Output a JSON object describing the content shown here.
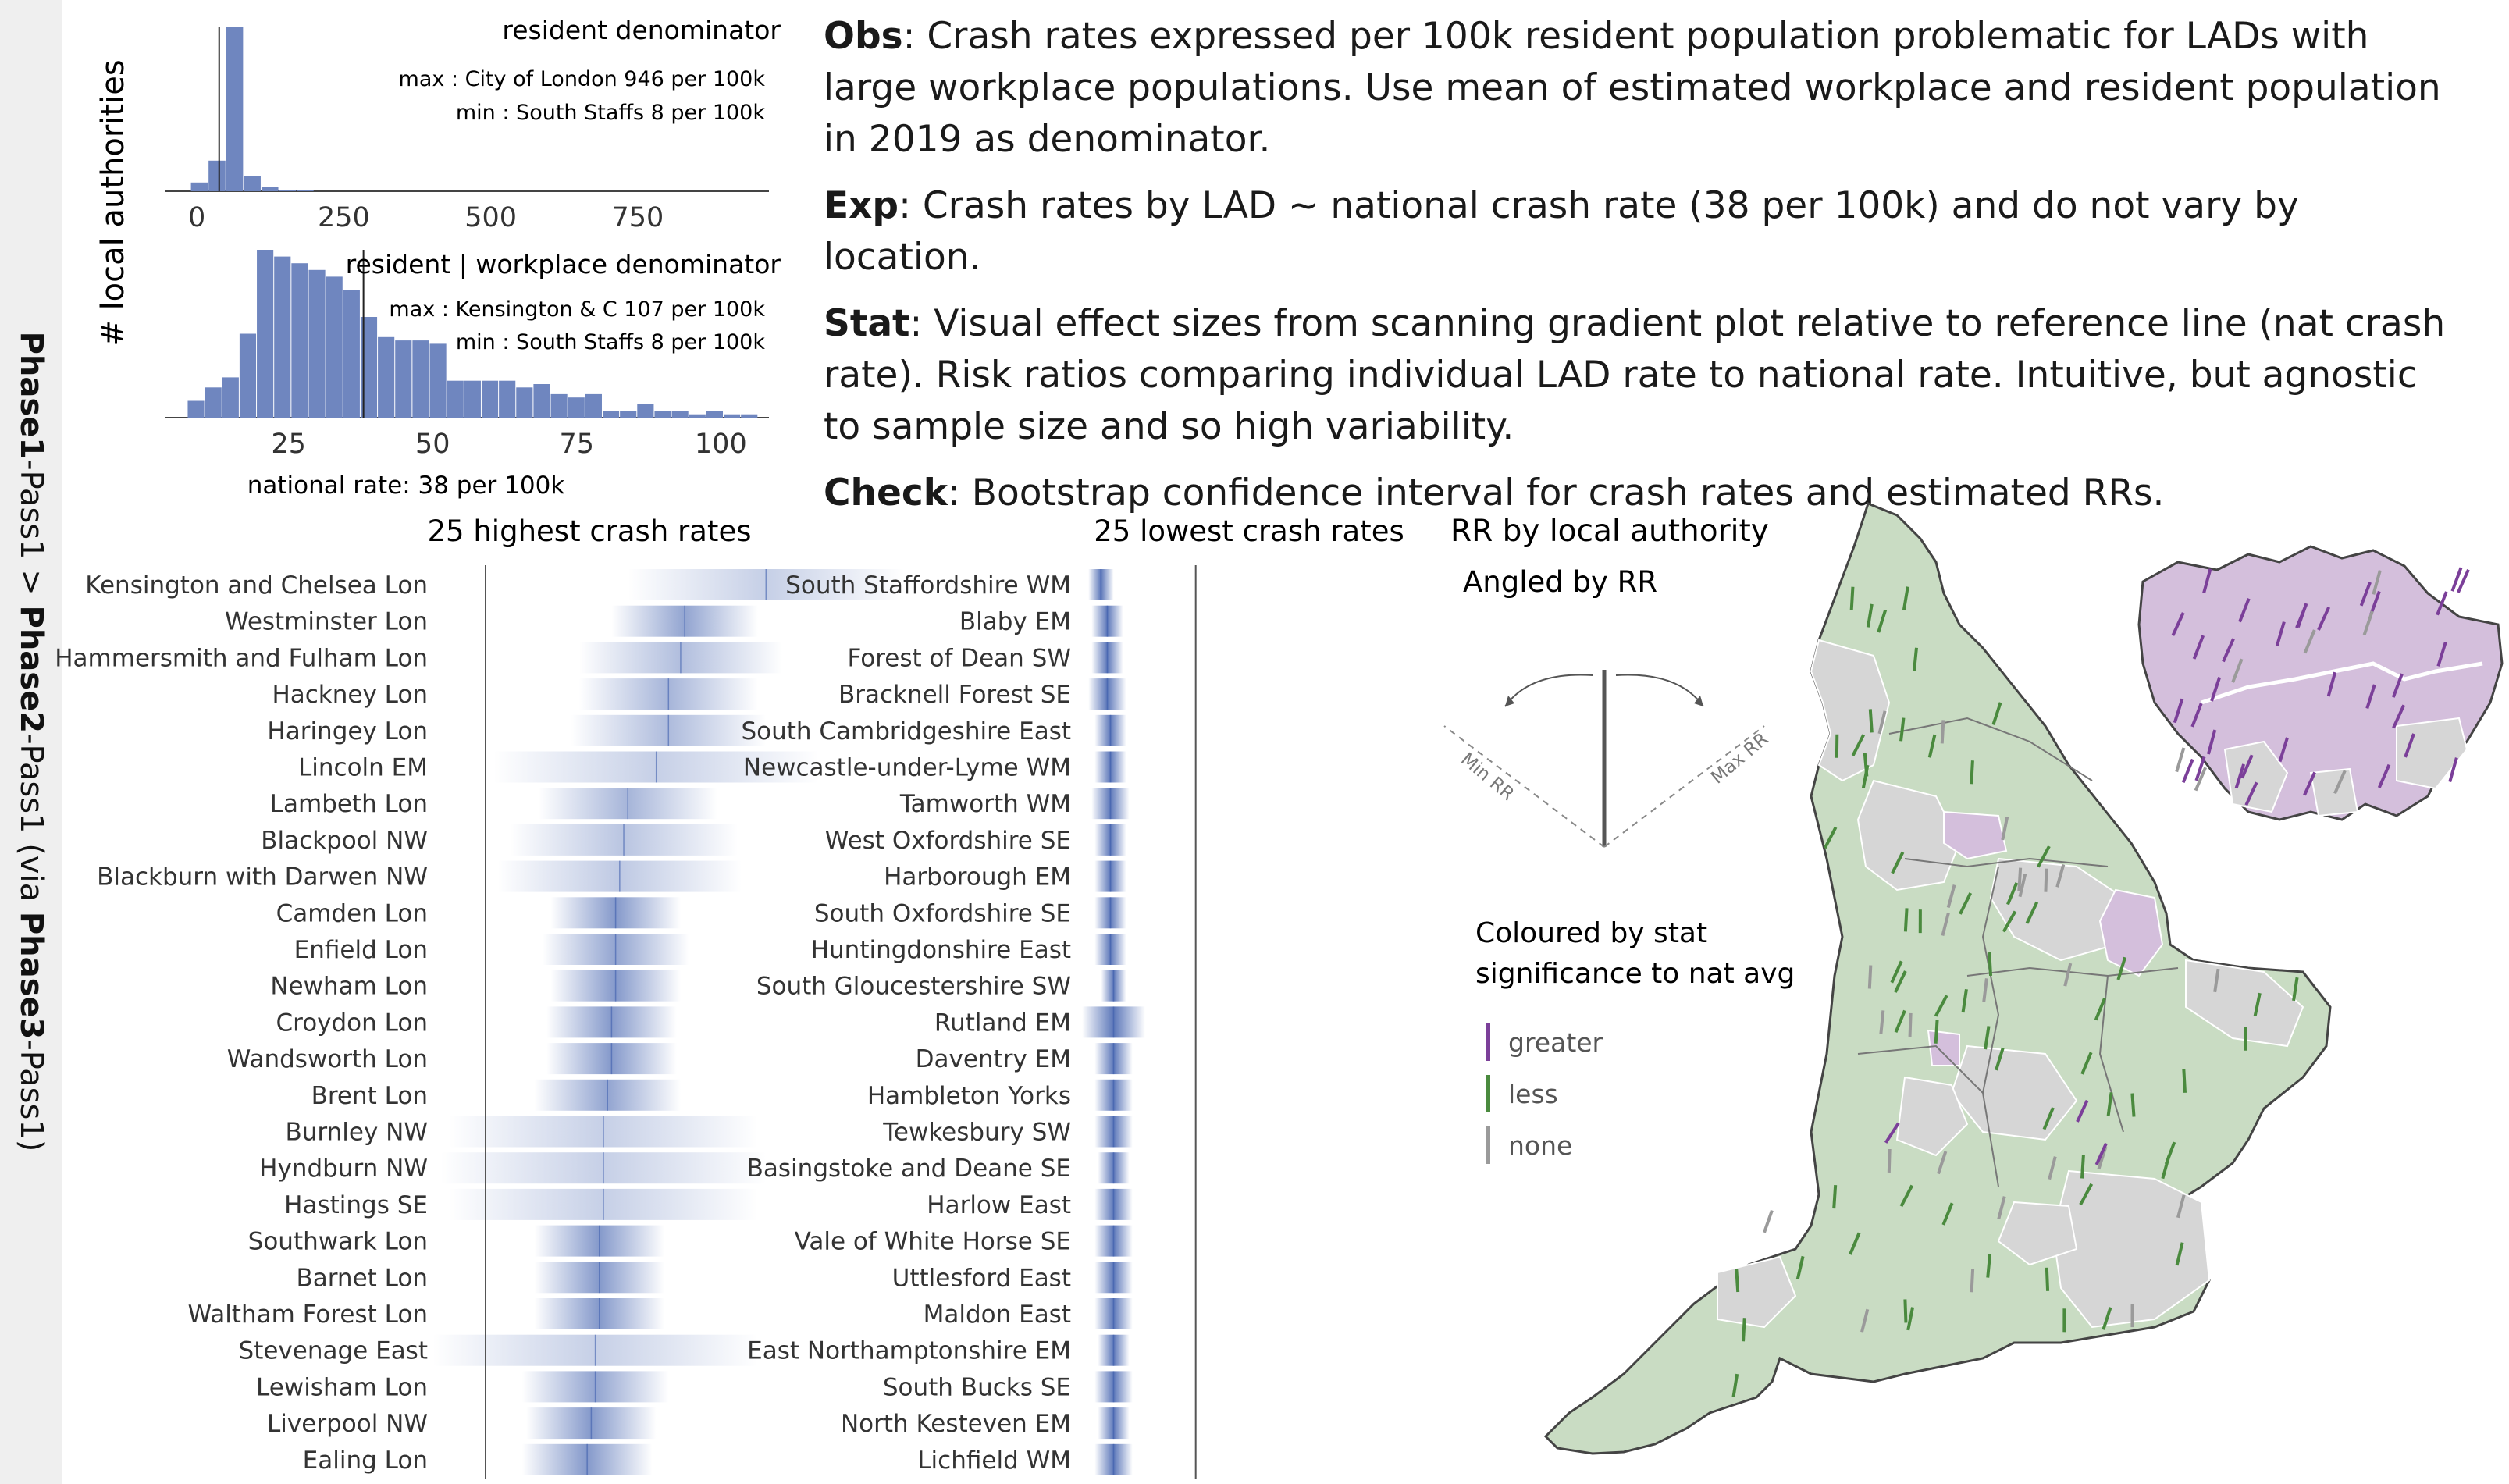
{
  "sidebar": {
    "p1": "Phase1",
    "s1": "-Pass1 > ",
    "p2": "Phase2",
    "s2": "-Pass1 (via ",
    "p3": "Phase3",
    "s3": "-Pass1)"
  },
  "notes": [
    {
      "key": "Obs",
      "text": ": Crash rates expressed per 100k resident population problematic for LADs with large workplace populations. Use mean of estimated workplace and resident population in 2019 as denominator."
    },
    {
      "key": "Exp",
      "text": ": Crash rates by LAD ~ national crash rate (38 per 100k) and do not vary by location."
    },
    {
      "key": "Stat",
      "text": ": Visual effect sizes from scanning gradient plot relative to reference line (nat crash rate). Risk ratios comparing individual LAD rate to national rate. Intuitive, but agnostic to sample size and so high variability."
    },
    {
      "key": "Check",
      "text": ": Bootstrap confidence interval for crash rates and estimated RRs."
    }
  ],
  "colors": {
    "bar": "#6f86bf",
    "gradient": "#3f5fad",
    "greater": "#7b3f99",
    "less": "#4a8a3e",
    "none": "#9a9a9a",
    "region_less": "#c9dcc3",
    "region_none": "#d6d6d6",
    "region_greater": "#d4bfdc"
  },
  "chart_data": [
    {
      "type": "bar",
      "title": "resident denominator",
      "ylabel": "# local authorities",
      "annotations": [
        "max : City of London 946  per 100k",
        "min : South Staffs 8 per 100k"
      ],
      "x_ticks": [
        0,
        250,
        500,
        750
      ],
      "xlim": [
        -40,
        960
      ],
      "x": [
        5,
        35,
        65,
        95,
        125,
        155,
        185
      ],
      "values": [
        8,
        28,
        150,
        14,
        4,
        1,
        1
      ],
      "reference_x": 38
    },
    {
      "type": "bar",
      "title": "resident | workplace   denominator",
      "annotations": [
        "max : Kensington & C  107  per 100k",
        "min : South Staffs 8 per 100k"
      ],
      "x_ticks": [
        25,
        50,
        75,
        100
      ],
      "xlim": [
        5,
        107
      ],
      "footer": "national rate: 38 per 100k",
      "x": [
        9,
        12,
        15,
        18,
        21,
        24,
        27,
        30,
        33,
        36,
        39,
        42,
        45,
        48,
        51,
        54,
        57,
        60,
        63,
        66,
        69,
        72,
        75,
        78,
        81,
        84,
        87,
        90,
        93,
        96,
        99,
        102,
        105
      ],
      "values": [
        5,
        9,
        12,
        25,
        50,
        48,
        46,
        44,
        42,
        38,
        30,
        24,
        23,
        23,
        22,
        11,
        11,
        11,
        11,
        9,
        10,
        7,
        6,
        7,
        2,
        2,
        4,
        2,
        2,
        1,
        2,
        1,
        1
      ],
      "reference_x": 38
    },
    {
      "type": "gradient",
      "title": "25 highest crash rates",
      "categories": [
        "Kensington and Chelsea Lon",
        "Westminster Lon",
        "Hammersmith and Fulham Lon",
        "Hackney Lon",
        "Haringey Lon",
        "Lincoln EM",
        "Lambeth Lon",
        "Blackpool NW",
        "Blackburn with Darwen NW",
        "Camden Lon",
        "Enfield Lon",
        "Newham Lon",
        "Croydon Lon",
        "Wandsworth Lon",
        "Brent Lon",
        "Burnley NW",
        "Hyndburn NW",
        "Hastings SE",
        "Southwark Lon",
        "Barnet Lon",
        "Waltham Forest Lon",
        "Stevenage East",
        "Lewisham Lon",
        "Liverpool NW",
        "Ealing Lon"
      ],
      "values": [
        107,
        87,
        86,
        83,
        83,
        80,
        73,
        72,
        71,
        70,
        70,
        70,
        69,
        69,
        68,
        67,
        67,
        67,
        66,
        66,
        66,
        65,
        65,
        64,
        63
      ],
      "spread": [
        34,
        18,
        25,
        22,
        24,
        40,
        22,
        28,
        30,
        16,
        18,
        16,
        16,
        16,
        18,
        38,
        40,
        38,
        16,
        16,
        16,
        40,
        18,
        16,
        16
      ],
      "reference_x": 38,
      "xlim": [
        38,
        125
      ]
    },
    {
      "type": "gradient",
      "title": "25 lowest crash rates",
      "categories": [
        "South Staffordshire WM",
        "Blaby EM",
        "Forest of Dean SW",
        "Bracknell Forest SE",
        "South Cambridgeshire East",
        "Newcastle-under-Lyme WM",
        "Tamworth WM",
        "West Oxfordshire SE",
        "Harborough EM",
        "South Oxfordshire SE",
        "Huntingdonshire East",
        "South Gloucestershire SW",
        "Rutland EM",
        "Daventry EM",
        "Hambleton Yorks",
        "Tewkesbury SW",
        "Basingstoke and Deane SE",
        "Harlow East",
        "Vale of White Horse SE",
        "Uttlesford East",
        "Maldon East",
        "East Northamptonshire EM",
        "South Bucks SE",
        "North Kesteven EM",
        "Lichfield WM"
      ],
      "values": [
        8,
        10,
        10,
        10,
        11,
        11,
        11,
        11,
        11,
        11,
        11,
        12,
        12,
        12,
        12,
        12,
        12,
        12,
        12,
        12,
        12,
        12,
        12,
        12,
        12
      ],
      "spread": [
        4,
        5,
        5,
        6,
        5,
        5,
        6,
        5,
        5,
        5,
        5,
        4,
        10,
        6,
        6,
        6,
        5,
        6,
        6,
        6,
        6,
        5,
        6,
        5,
        6
      ],
      "reference_x": 38,
      "xlim": [
        0,
        45
      ]
    },
    {
      "type": "map",
      "title": "RR by local authority",
      "subtitle": "Angled by RR",
      "dial": {
        "min_label": "Min RR",
        "max_label": "Max RR"
      },
      "legend_title": "Coloured by stat significance to nat avg",
      "legend": [
        {
          "label": "greater",
          "key": "greater"
        },
        {
          "label": "less",
          "key": "less"
        },
        {
          "label": "none",
          "key": "none"
        }
      ]
    }
  ]
}
